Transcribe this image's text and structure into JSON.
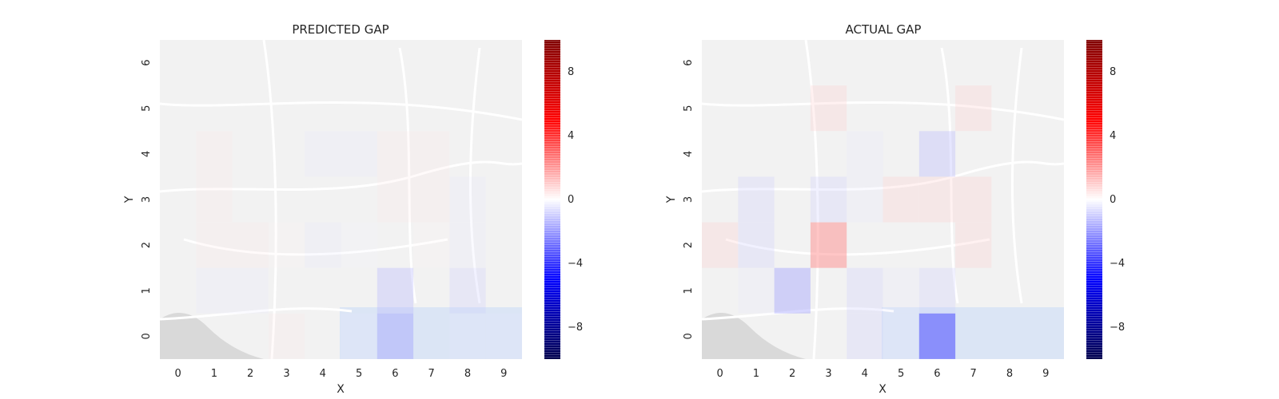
{
  "chart_data": [
    {
      "type": "heatmap",
      "title": "PREDICTED GAP",
      "xlabel": "X",
      "ylabel": "Y",
      "x_ticks": [
        "0",
        "1",
        "2",
        "3",
        "4",
        "5",
        "6",
        "7",
        "8",
        "9"
      ],
      "y_ticks": [
        "0",
        "1",
        "2",
        "3",
        "4",
        "5",
        "6"
      ],
      "colorbar": {
        "ticks": [
          "8",
          "4",
          "0",
          "−4",
          "−8"
        ],
        "tick_values": [
          8,
          4,
          0,
          -4,
          -8
        ],
        "vmin": -10,
        "vmax": 10,
        "cmap": "seismic"
      },
      "background": "street map of Porto (Cedofeita, Lapa, Bonfim, Campanha, Ribeira area)",
      "grid_values": [
        [
          0,
          0,
          0,
          1,
          0,
          -1,
          -4,
          0,
          -1,
          -1
        ],
        [
          0,
          -1,
          -1,
          0,
          0,
          0,
          -3,
          0,
          -2,
          0
        ],
        [
          0,
          1,
          1,
          0.5,
          -1,
          -0.5,
          0,
          0.5,
          -1,
          0
        ],
        [
          0,
          1,
          0,
          0,
          0,
          0,
          1,
          1,
          -1,
          0
        ],
        [
          0,
          1,
          0,
          0,
          -1,
          -1,
          1,
          1,
          0,
          0
        ],
        [
          0,
          0,
          0,
          0,
          0,
          0,
          0,
          0,
          0,
          0
        ],
        [
          0,
          0,
          0,
          0,
          0,
          0,
          0,
          0,
          0,
          0
        ]
      ]
    },
    {
      "type": "heatmap",
      "title": "ACTUAL GAP",
      "xlabel": "X",
      "ylabel": "Y",
      "x_ticks": [
        "0",
        "1",
        "2",
        "3",
        "4",
        "5",
        "6",
        "7",
        "8",
        "9"
      ],
      "y_ticks": [
        "0",
        "1",
        "2",
        "3",
        "4",
        "5",
        "6"
      ],
      "colorbar": {
        "ticks": [
          "8",
          "4",
          "0",
          "−4",
          "−8"
        ],
        "tick_values": [
          8,
          4,
          0,
          -4,
          -8
        ],
        "vmin": -10,
        "vmax": 10,
        "cmap": "seismic"
      },
      "background": "street map of Porto (Cedofeita, Lapa, Bonfim, Campanha, Ribeira area)",
      "grid_values": [
        [
          0,
          0,
          0,
          0,
          -2,
          -1,
          -7,
          0,
          0,
          0
        ],
        [
          0,
          -1,
          -4,
          0,
          -2,
          -1,
          -2,
          0,
          0,
          0
        ],
        [
          2,
          -2,
          0,
          5,
          0,
          0,
          0,
          2,
          0,
          0
        ],
        [
          0,
          -2,
          0,
          -2,
          -1,
          2,
          2,
          2,
          0,
          0
        ],
        [
          0,
          0,
          0,
          0,
          -1,
          0,
          -3,
          0,
          0,
          0
        ],
        [
          0,
          0,
          0,
          2,
          0,
          0,
          0,
          2,
          0,
          0
        ],
        [
          0,
          0,
          0,
          0,
          0,
          0,
          0,
          0,
          0,
          0
        ]
      ]
    }
  ]
}
